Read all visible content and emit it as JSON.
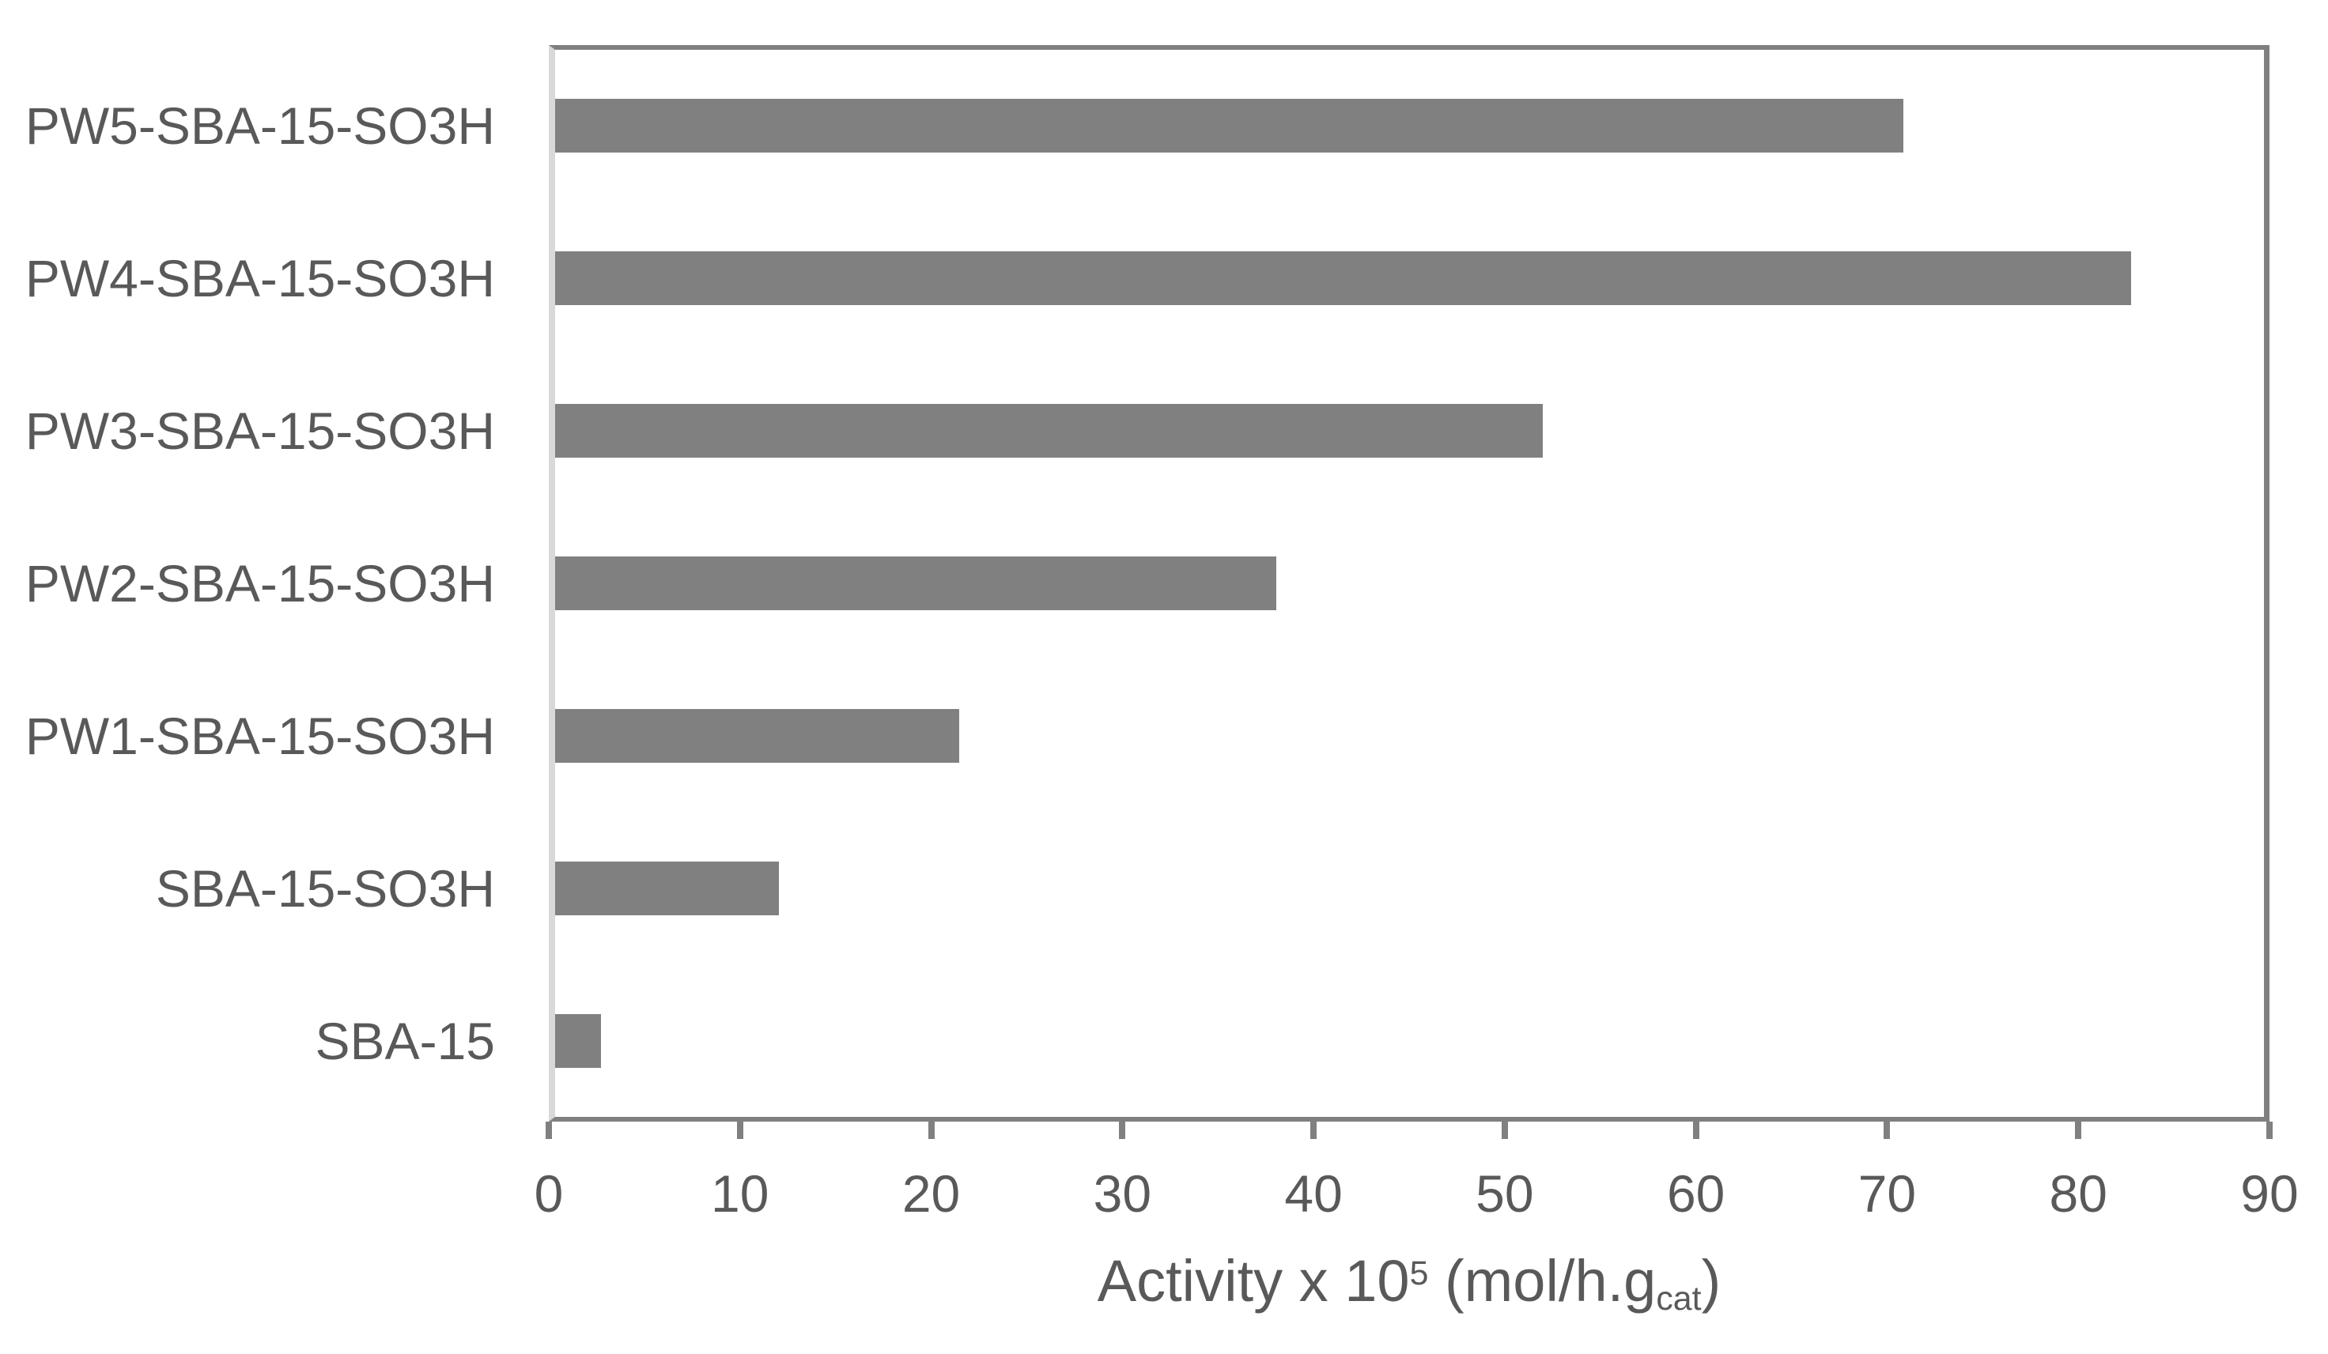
{
  "chart_data": {
    "type": "bar",
    "orientation": "horizontal",
    "categories": [
      "PW5-SBA-15-SO3H",
      "PW4-SBA-15-SO3H",
      "PW3-SBA-15-SO3H",
      "PW2-SBA-15-SO3H",
      "PW1-SBA-15-SO3H",
      "SBA-15-SO3H",
      "SBA-15"
    ],
    "values": [
      71,
      83,
      52,
      38,
      21.3,
      11.8,
      2.4
    ],
    "xlabel_plain": "Activity x 10^5 (mol/h.g_cat)",
    "xlabel_parts": {
      "prefix": "Activity x 10",
      "superscript": "5",
      "middle": " (mol/h.g",
      "subscript": "cat",
      "suffix": ")"
    },
    "xlim": [
      0,
      90
    ],
    "xticks": [
      0,
      10,
      20,
      30,
      40,
      50,
      60,
      70,
      80,
      90
    ],
    "grid": false,
    "legend": false,
    "title": "",
    "colors": {
      "bar": "#808080",
      "axis_line": "#808080",
      "left_axis_line": "#d9d9d9",
      "text": "#595959",
      "background": "#ffffff"
    }
  }
}
